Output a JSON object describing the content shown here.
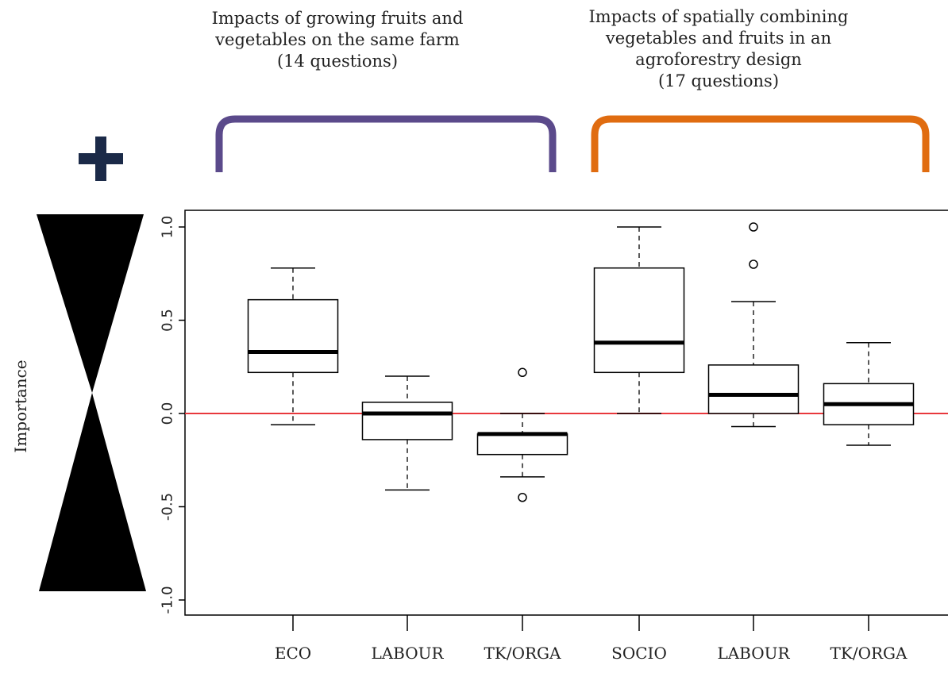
{
  "groups": [
    {
      "title": "Impacts of growing fruits and\nvegetables on the same farm\n(14 questions)",
      "color": "#5b4a8b"
    },
    {
      "title": "Impacts of spatially combining\nvegetables and fruits in an\nagroforestry design\n(17 questions)",
      "color": "#e06c10"
    }
  ],
  "plus_symbol": "+",
  "chart_data": {
    "type": "box",
    "ylabel": "Importance",
    "ylim": [
      -1.1,
      1.1
    ],
    "yticks": [
      "-1.0",
      "-0.5",
      "0.0",
      "0.5",
      "1.0"
    ],
    "yticks_values": [
      -1.0,
      -0.5,
      0.0,
      0.5,
      1.0
    ],
    "reference_line": {
      "y": 0.0,
      "color": "#e8383d"
    },
    "categories": [
      "ECO",
      "LABOUR",
      "TK/ORGA",
      "SOCIO",
      "LABOUR",
      "TK/ORGA"
    ],
    "boxes": [
      {
        "category": "ECO",
        "whisker_low": -0.06,
        "q1": 0.22,
        "median": 0.33,
        "q3": 0.61,
        "whisker_high": 0.78,
        "outliers": []
      },
      {
        "category": "LABOUR",
        "whisker_low": -0.41,
        "q1": -0.14,
        "median": 0.0,
        "q3": 0.06,
        "whisker_high": 0.2,
        "outliers": []
      },
      {
        "category": "TK/ORGA",
        "whisker_low": -0.34,
        "q1": -0.22,
        "median": -0.11,
        "q3": -0.11,
        "whisker_high": 0.0,
        "outliers": [
          0.22,
          -0.45
        ]
      },
      {
        "category": "SOCIO",
        "whisker_low": 0.0,
        "q1": 0.22,
        "median": 0.38,
        "q3": 0.78,
        "whisker_high": 1.0,
        "outliers": []
      },
      {
        "category": "LABOUR",
        "whisker_low": -0.07,
        "q1": 0.0,
        "median": 0.1,
        "q3": 0.26,
        "whisker_high": 0.6,
        "outliers": [
          1.0,
          0.8
        ]
      },
      {
        "category": "TK/ORGA",
        "whisker_low": -0.17,
        "q1": -0.06,
        "median": 0.05,
        "q3": 0.16,
        "whisker_high": 0.38,
        "outliers": []
      }
    ]
  }
}
